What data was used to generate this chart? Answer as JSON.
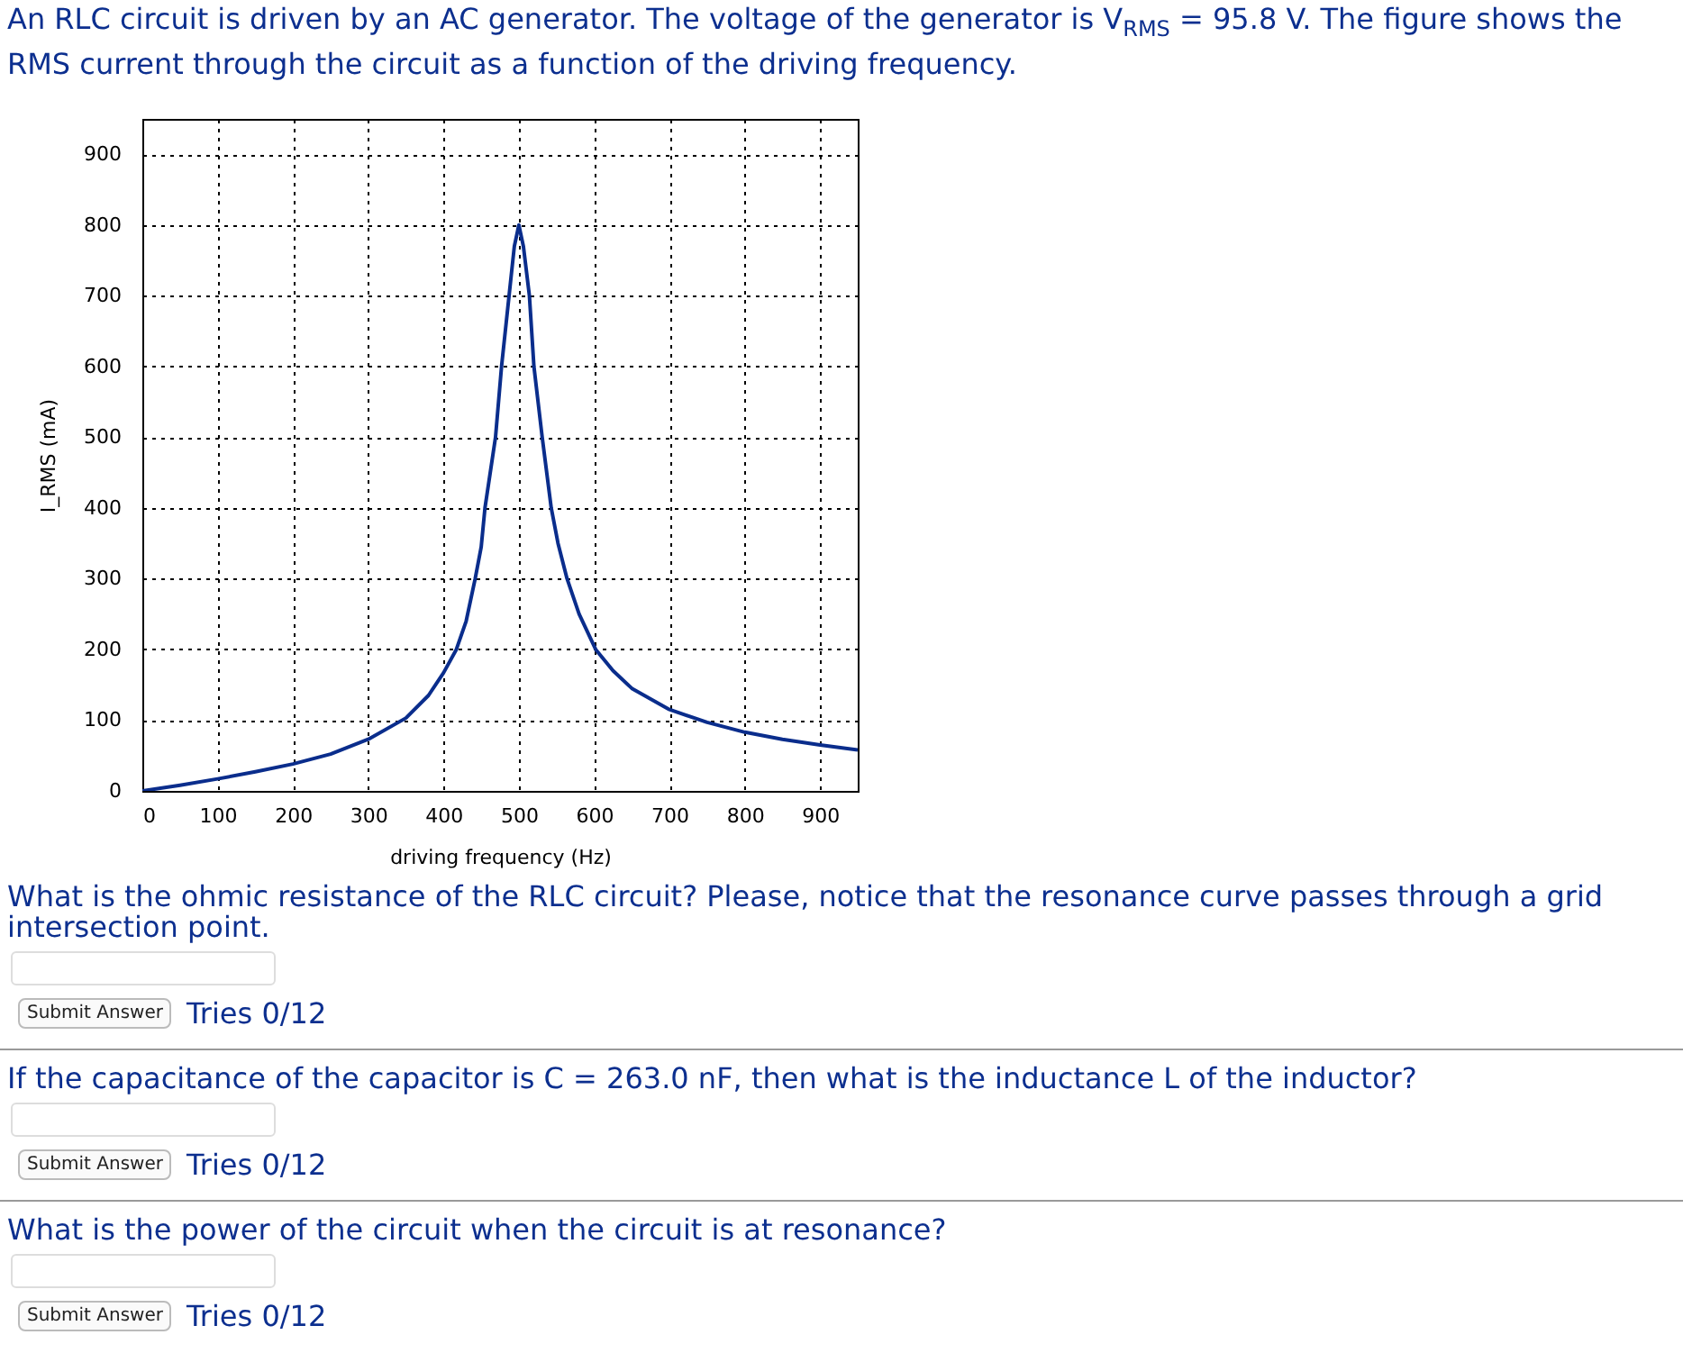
{
  "chart_data": {
    "type": "line",
    "title": "An RLC circuit is driven by an AC generator. The voltage of the generator is V$_{RMS}$ = 95.8 V. The figure shows the RMS current through the circuit as a function of the driving frequency.",
    "xlabel": "driving frequency (Hz)",
    "ylabel": "I_RMS (mA)",
    "x": [
      0,
      50,
      100,
      150,
      200,
      250,
      300,
      350,
      380,
      400,
      417,
      430,
      442,
      450,
      455,
      462,
      469,
      477,
      487,
      494,
      500,
      506,
      514,
      520,
      531,
      543,
      552,
      564,
      580,
      602,
      625,
      650,
      700,
      750,
      800,
      850,
      900,
      950
    ],
    "series": [
      {
        "color": "#0a2d8c",
        "values": [
          0,
          8,
          17,
          27,
          38,
          52,
          73,
          103,
          135,
          167,
          200,
          240,
          300,
          345,
          400,
          450,
          500,
          600,
          700,
          770,
          800,
          770,
          700,
          600,
          500,
          400,
          350,
          300,
          250,
          200,
          170,
          145,
          115,
          97,
          83,
          73,
          65,
          58
        ]
      }
    ],
    "xlim": [
      0,
      950
    ],
    "ylim": [
      0,
      950
    ],
    "xticks": [
      0,
      100,
      200,
      300,
      400,
      500,
      600,
      700,
      800,
      900
    ],
    "yticks": [
      0,
      100,
      200,
      300,
      400,
      500,
      600,
      700,
      800,
      900
    ],
    "grid": true,
    "annotations": [
      "What is the ohmic resistance of the RLC circuit? Please, notice that the resonance curve passes through a grid intersection point.",
      "Submit Answer",
      "Tries 0/12",
      "If the capacitance of the capacitor is C = 263.0 nF, then what is the inductance L of the inductor?",
      "Submit Answer",
      "Tries 0/12",
      "What is the power of the circuit when the circuit is at resonance?",
      "Submit Answer",
      "Tries 0/12"
    ]
  }
}
